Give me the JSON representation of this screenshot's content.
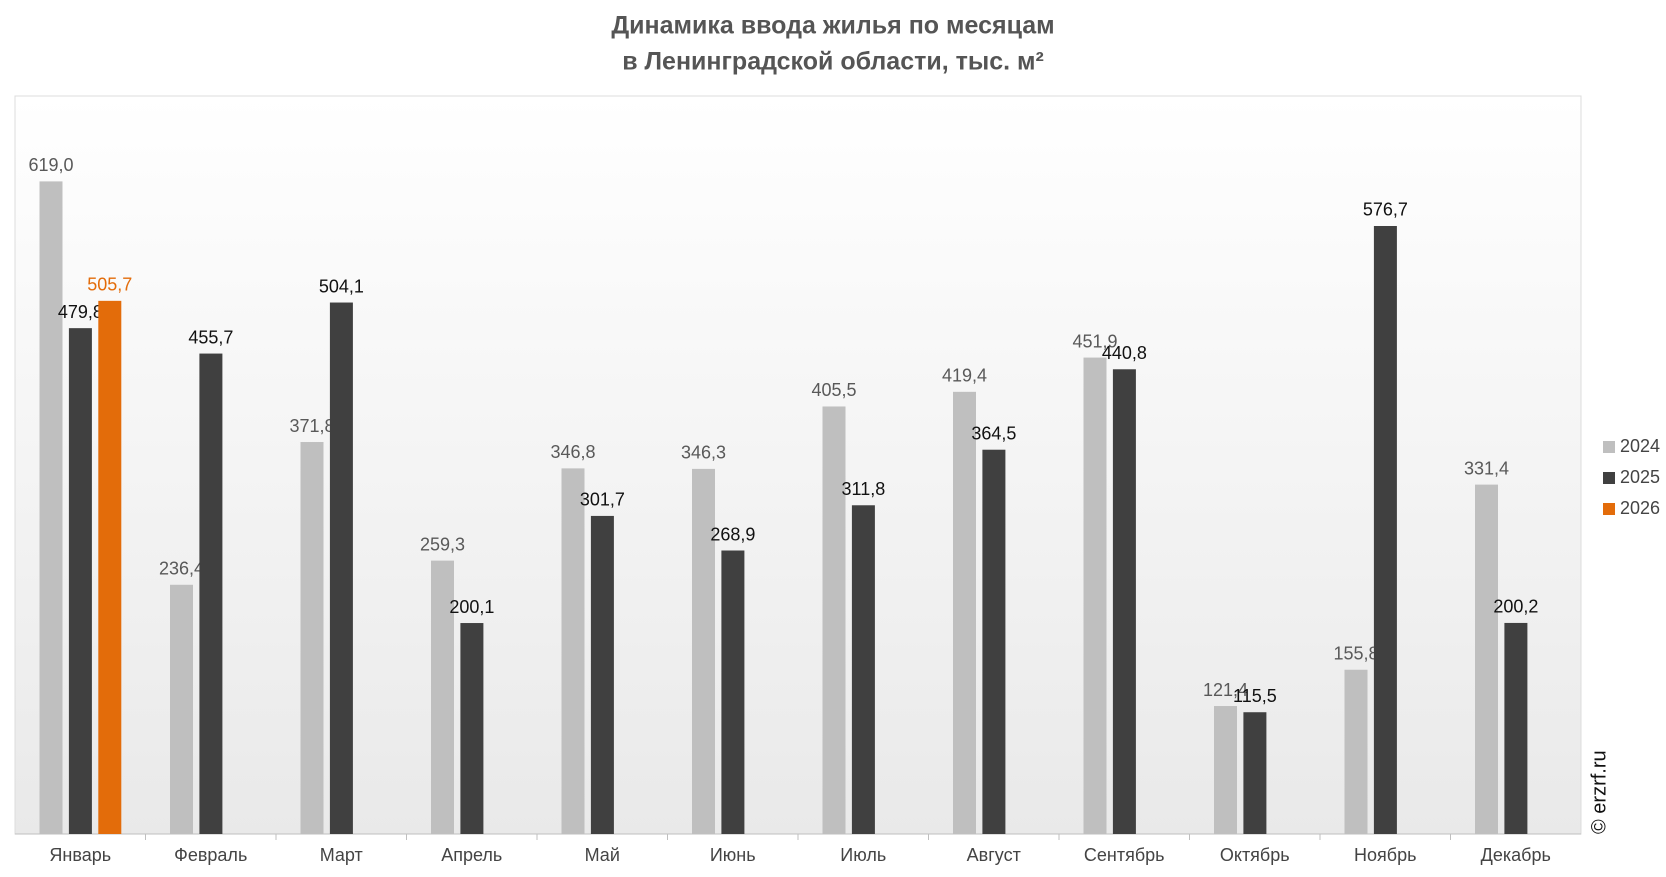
{
  "chart_data": {
    "type": "bar",
    "title": [
      "Динамика ввода жилья по месяцам",
      "в Ленинградской области, тыс. м²"
    ],
    "watermark": "© erzrf.ru",
    "categories": [
      "Январь",
      "Февраль",
      "Март",
      "Апрель",
      "Май",
      "Июнь",
      "Июль",
      "Август",
      "Сентябрь",
      "Октябрь",
      "Ноябрь",
      "Декабрь"
    ],
    "series": [
      {
        "name": "2024",
        "color": "#bfbfbf",
        "label_color": "#595959",
        "values": [
          619.0,
          236.4,
          371.8,
          259.3,
          346.8,
          346.3,
          405.5,
          419.4,
          451.9,
          121.4,
          155.8,
          331.4
        ],
        "value_labels": [
          "619,0",
          "236,4",
          "371,8",
          "259,3",
          "346,8",
          "346,3",
          "405,5",
          "419,4",
          "451,9",
          "121,4",
          "155,8",
          "331,4"
        ]
      },
      {
        "name": "2025",
        "color": "#404040",
        "label_color": "#111111",
        "values": [
          479.8,
          455.7,
          504.1,
          200.1,
          301.7,
          268.9,
          311.8,
          364.5,
          440.8,
          115.5,
          576.7,
          200.2
        ],
        "value_labels": [
          "479,8",
          "455,7",
          "504,1",
          "200,1",
          "301,7",
          "268,9",
          "311,8",
          "364,5",
          "440,8",
          "115,5",
          "576,7",
          "200,2"
        ]
      },
      {
        "name": "2026",
        "color": "#e36c0a",
        "label_color": "#e36c0a",
        "values": [
          505.7,
          null,
          null,
          null,
          null,
          null,
          null,
          null,
          null,
          null,
          null,
          null
        ],
        "value_labels": [
          "505,7",
          null,
          null,
          null,
          null,
          null,
          null,
          null,
          null,
          null,
          null,
          null
        ]
      }
    ],
    "ylim": [
      0,
      700
    ],
    "legend": "right"
  }
}
